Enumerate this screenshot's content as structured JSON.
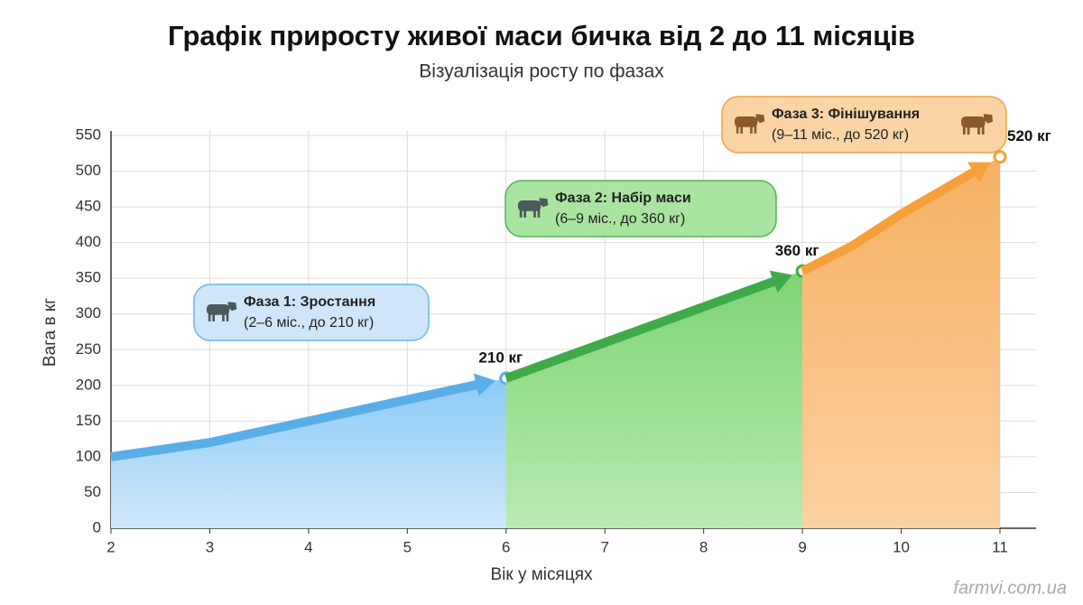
{
  "chart_data": {
    "type": "area",
    "title": "Графік приросту живої маси бичка від 2 до 11 місяців",
    "subtitle": "Візуалізація росту по фазах",
    "x_label": "Вік у місяцях",
    "y_label": "Вага в кг",
    "xlim": [
      2,
      11
    ],
    "ylim": [
      0,
      550
    ],
    "xticks": [
      2,
      3,
      4,
      5,
      6,
      7,
      8,
      9,
      10,
      11
    ],
    "yticks": [
      0,
      50,
      100,
      150,
      200,
      250,
      300,
      350,
      400,
      450,
      500,
      550
    ],
    "grid": true,
    "series": [
      {
        "name": "Фаза 1: Зростання",
        "description": "(2–6 міс., до 210 кг)",
        "color": "#5aaee8",
        "x": [
          2,
          3,
          4,
          5,
          6
        ],
        "values": [
          100,
          120,
          150,
          180,
          210
        ],
        "value_labels": [
          null,
          null,
          null,
          null,
          "210 кг"
        ]
      },
      {
        "name": "Фаза 2: Набір маси",
        "description": "(6–9 міс., до 360 кг)",
        "color": "#3faa48",
        "x": [
          6,
          7,
          8,
          9
        ],
        "values": [
          210,
          260,
          310,
          360
        ],
        "value_labels": [
          null,
          null,
          null,
          "360 кг"
        ]
      },
      {
        "name": "Фаза 3: Фінішування",
        "description": "(9–11 міс., до 520 кг)",
        "color": "#f5a03a",
        "x": [
          9,
          9.5,
          10,
          11
        ],
        "values": [
          360,
          395,
          440,
          520
        ],
        "value_labels": [
          null,
          null,
          null,
          "520 кг"
        ]
      }
    ],
    "watermark": "farmvi.com.ua"
  }
}
